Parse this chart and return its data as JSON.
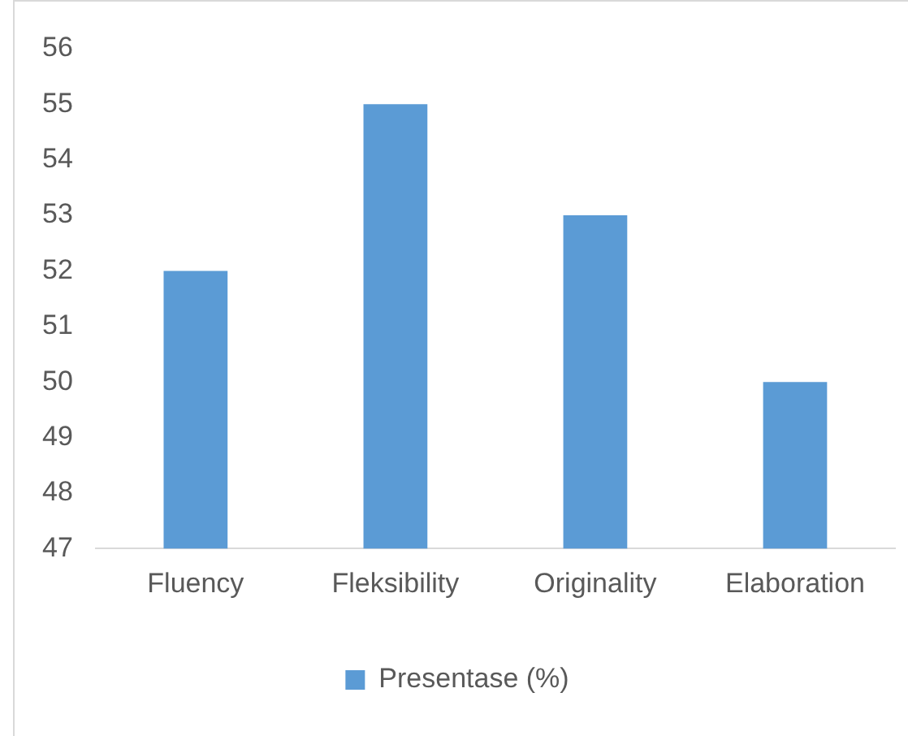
{
  "chart_data": {
    "type": "bar",
    "categories": [
      "Fluency",
      "Fleksibility",
      "Originality",
      "Elaboration"
    ],
    "series": [
      {
        "name": "Presentase (%)",
        "color": "#5b9bd5",
        "values": [
          52,
          55,
          53,
          50
        ]
      }
    ],
    "ylim": [
      47,
      56
    ],
    "yticks": [
      47,
      48,
      49,
      50,
      51,
      52,
      53,
      54,
      55,
      56
    ],
    "grid": false,
    "legend": "bottom"
  }
}
